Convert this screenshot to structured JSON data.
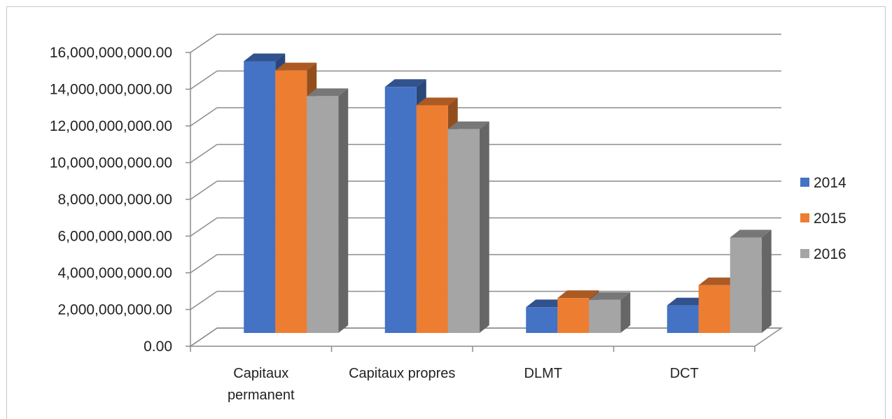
{
  "chart_data": {
    "type": "bar",
    "title": "",
    "xlabel": "",
    "ylabel": "",
    "ylim": [
      0,
      16000000000
    ],
    "y_ticks": [
      "0.00",
      "2,000,000,000.00",
      "4,000,000,000.00",
      "6,000,000,000.00",
      "8,000,000,000.00",
      "10,000,000,000.00",
      "12,000,000,000.00",
      "14,000,000,000.00",
      "16,000,000,000.00"
    ],
    "categories": [
      [
        "Capitaux",
        "permanent"
      ],
      [
        "Capitaux propres"
      ],
      [
        "DLMT"
      ],
      [
        "DCT"
      ]
    ],
    "series": [
      {
        "name": "2014",
        "color": "#4472C4",
        "values": [
          14800000000,
          13400000000,
          1400000000,
          1500000000
        ]
      },
      {
        "name": "2015",
        "color": "#ED7D31",
        "values": [
          14300000000,
          12400000000,
          1900000000,
          2600000000
        ]
      },
      {
        "name": "2016",
        "color": "#A5A5A5",
        "values": [
          12900000000,
          11100000000,
          1800000000,
          5200000000
        ]
      }
    ],
    "grid": true,
    "legend_position": "right",
    "style": "3d-clustered-column"
  }
}
